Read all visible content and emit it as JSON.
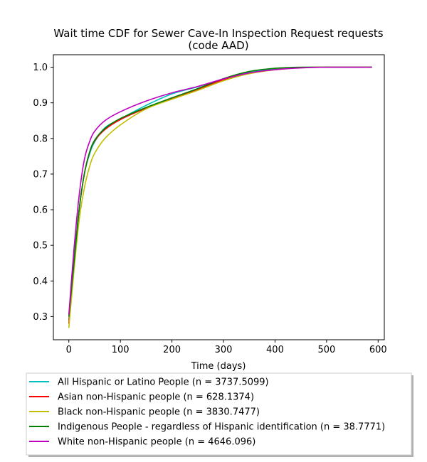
{
  "chart_data": {
    "type": "line",
    "title_line1": "Wait time CDF for Sewer Cave-In Inspection Request  requests",
    "title_line2": "(code AAD)",
    "xlabel": "Time (days)",
    "ylabel": "",
    "xlim": [
      -30,
      612
    ],
    "ylim": [
      0.235,
      1.035
    ],
    "x_ticks": [
      0,
      100,
      200,
      300,
      400,
      500,
      600
    ],
    "y_ticks": [
      0.3,
      0.4,
      0.5,
      0.6,
      0.7,
      0.8,
      0.9,
      1.0
    ],
    "x_tick_labels": [
      "0",
      "100",
      "200",
      "300",
      "400",
      "500",
      "600"
    ],
    "y_tick_labels": [
      "0.3",
      "0.4",
      "0.5",
      "0.6",
      "0.7",
      "0.8",
      "0.9",
      "1.0"
    ],
    "grid": false,
    "legend_position": "below",
    "series": [
      {
        "name": "All Hispanic or Latino People (n = 3737.5099)",
        "color": "#00bfbf",
        "points": [
          [
            0,
            0.29
          ],
          [
            10,
            0.46
          ],
          [
            20,
            0.6
          ],
          [
            30,
            0.7
          ],
          [
            40,
            0.755
          ],
          [
            50,
            0.79
          ],
          [
            70,
            0.83
          ],
          [
            100,
            0.855
          ],
          [
            150,
            0.893
          ],
          [
            200,
            0.925
          ],
          [
            250,
            0.945
          ],
          [
            300,
            0.967
          ],
          [
            350,
            0.985
          ],
          [
            400,
            0.995
          ],
          [
            450,
            0.999
          ],
          [
            500,
            1.0
          ],
          [
            588,
            1.0
          ]
        ]
      },
      {
        "name": "Asian non-Hispanic people (n = 628.1374)",
        "color": "#ff0000",
        "points": [
          [
            0,
            0.28
          ],
          [
            10,
            0.45
          ],
          [
            20,
            0.6
          ],
          [
            30,
            0.7
          ],
          [
            40,
            0.76
          ],
          [
            50,
            0.793
          ],
          [
            70,
            0.825
          ],
          [
            100,
            0.853
          ],
          [
            150,
            0.885
          ],
          [
            200,
            0.912
          ],
          [
            250,
            0.937
          ],
          [
            300,
            0.965
          ],
          [
            350,
            0.982
          ],
          [
            400,
            0.993
          ],
          [
            450,
            0.999
          ],
          [
            500,
            1.0
          ],
          [
            588,
            1.0
          ]
        ]
      },
      {
        "name": "Black non-Hispanic people (n = 3830.7477)",
        "color": "#bfbf00",
        "points": [
          [
            0,
            0.268
          ],
          [
            10,
            0.43
          ],
          [
            20,
            0.57
          ],
          [
            30,
            0.66
          ],
          [
            40,
            0.72
          ],
          [
            50,
            0.758
          ],
          [
            70,
            0.8
          ],
          [
            100,
            0.838
          ],
          [
            150,
            0.883
          ],
          [
            200,
            0.91
          ],
          [
            250,
            0.935
          ],
          [
            300,
            0.962
          ],
          [
            350,
            0.982
          ],
          [
            400,
            0.993
          ],
          [
            450,
            0.999
          ],
          [
            500,
            1.0
          ],
          [
            588,
            1.0
          ]
        ]
      },
      {
        "name": "Indigenous People - regardless of Hispanic identification (n = 38.7771)",
        "color": "#008000",
        "points": [
          [
            0,
            0.3
          ],
          [
            10,
            0.45
          ],
          [
            20,
            0.6
          ],
          [
            30,
            0.7
          ],
          [
            40,
            0.76
          ],
          [
            50,
            0.795
          ],
          [
            70,
            0.828
          ],
          [
            100,
            0.856
          ],
          [
            150,
            0.887
          ],
          [
            200,
            0.914
          ],
          [
            250,
            0.94
          ],
          [
            300,
            0.968
          ],
          [
            350,
            0.988
          ],
          [
            400,
            0.997
          ],
          [
            450,
            1.0
          ],
          [
            500,
            1.0
          ],
          [
            588,
            1.0
          ]
        ]
      },
      {
        "name": "White non-Hispanic people (n = 4646.096)",
        "color": "#bf00bf",
        "points": [
          [
            0,
            0.305
          ],
          [
            10,
            0.49
          ],
          [
            20,
            0.64
          ],
          [
            30,
            0.74
          ],
          [
            40,
            0.79
          ],
          [
            50,
            0.82
          ],
          [
            70,
            0.85
          ],
          [
            100,
            0.875
          ],
          [
            150,
            0.905
          ],
          [
            200,
            0.928
          ],
          [
            250,
            0.946
          ],
          [
            300,
            0.967
          ],
          [
            350,
            0.984
          ],
          [
            400,
            0.993
          ],
          [
            450,
            0.998
          ],
          [
            500,
            1.0
          ],
          [
            588,
            1.0
          ]
        ]
      }
    ]
  }
}
